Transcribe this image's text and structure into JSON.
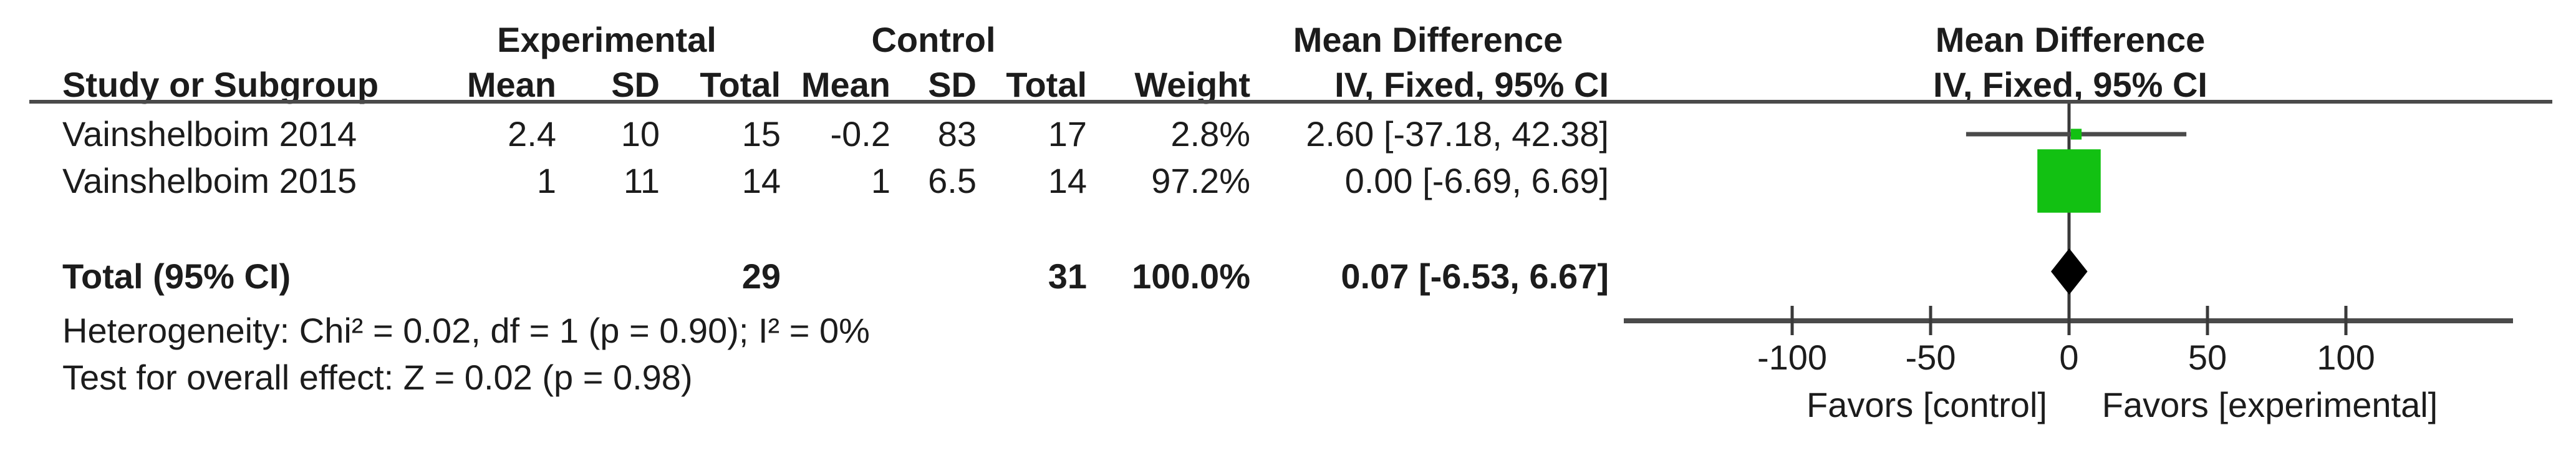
{
  "table": {
    "group_headers": {
      "experimental": "Experimental",
      "control": "Control",
      "mean_difference": "Mean Difference"
    },
    "col_headers": {
      "study": "Study or Subgroup",
      "mean": "Mean",
      "sd": "SD",
      "total": "Total",
      "weight": "Weight",
      "iv": "IV, Fixed, 95% CI"
    },
    "rows": [
      {
        "study": "Vainshelboim 2014",
        "exp_mean": "2.4",
        "exp_sd": "10",
        "exp_total": "15",
        "ctrl_mean": "-0.2",
        "ctrl_sd": "83",
        "ctrl_total": "17",
        "weight": "2.8%",
        "ci": "2.60 [-37.18, 42.38]"
      },
      {
        "study": "Vainshelboim 2015",
        "exp_mean": "1",
        "exp_sd": "11",
        "exp_total": "14",
        "ctrl_mean": "1",
        "ctrl_sd": "6.5",
        "ctrl_total": "14",
        "weight": "97.2%",
        "ci": "0.00 [-6.69, 6.69]"
      }
    ],
    "total_row": {
      "label": "Total (95% CI)",
      "exp_total": "29",
      "ctrl_total": "31",
      "weight": "100.0%",
      "ci": "0.07 [-6.53, 6.67]"
    },
    "heterogeneity": "Heterogeneity: Chi² = 0.02, df = 1 (p = 0.90); I² = 0%",
    "overall_effect": "Test for overall effect: Z = 0.02 (p = 0.98)"
  },
  "plot_headers": {
    "mean_difference": "Mean Difference",
    "iv": "IV, Fixed, 95% CI"
  },
  "chart_data": {
    "type": "forest",
    "effect_measure": "Mean Difference",
    "method": "IV, Fixed, 95% CI",
    "x_ticks": [
      -100,
      -50,
      0,
      50,
      100
    ],
    "xlim": [
      -161,
      160
    ],
    "favors_left": "Favors [control]",
    "favors_right": "Favors [experimental]",
    "studies": [
      {
        "name": "Vainshelboim 2014",
        "md": 2.6,
        "ci_low": -37.18,
        "ci_high": 42.38,
        "weight_pct": 2.8
      },
      {
        "name": "Vainshelboim 2015",
        "md": 0.0,
        "ci_low": -6.69,
        "ci_high": 6.69,
        "weight_pct": 97.2
      }
    ],
    "total": {
      "md": 0.07,
      "ci_low": -6.53,
      "ci_high": 6.67,
      "weight_pct": 100.0
    },
    "heterogeneity": {
      "chi2": 0.02,
      "df": 1,
      "p": 0.9,
      "i2_pct": 0
    },
    "overall_effect": {
      "z": 0.02,
      "p": 0.98
    },
    "colors": {
      "square": "#12c112",
      "diamond": "#000000",
      "line": "#4a4a4a",
      "text": "#1c1c1c"
    }
  }
}
